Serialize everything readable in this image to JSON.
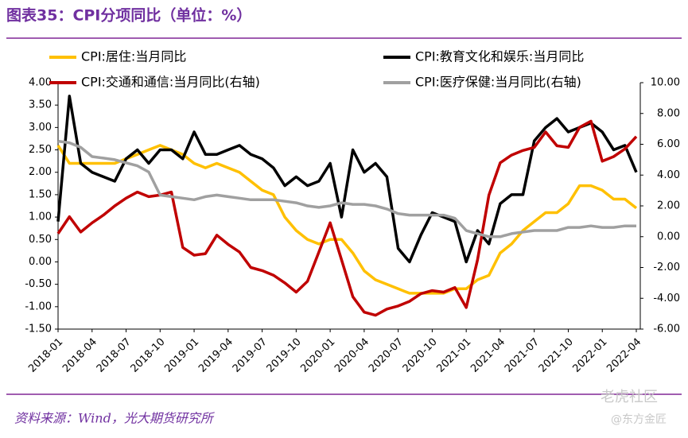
{
  "chart_data": {
    "type": "line",
    "title": "图表35：CPI分项同比（单位：%）",
    "source": "资料来源：Wind，光大期货研究所",
    "watermarks": [
      "老虎社区",
      "@东方金匠"
    ],
    "categories": [
      "2018-01",
      null,
      null,
      "2018-04",
      null,
      null,
      "2018-07",
      null,
      null,
      "2018-10",
      null,
      null,
      "2019-01",
      null,
      null,
      "2019-04",
      null,
      null,
      "2019-07",
      null,
      null,
      "2019-10",
      null,
      null,
      "2020-01",
      null,
      null,
      "2020-04",
      null,
      null,
      "2020-07",
      null,
      null,
      "2020-10",
      null,
      null,
      "2021-01",
      null,
      null,
      "2021-04",
      null,
      null,
      "2021-07",
      null,
      null,
      "2021-10",
      null,
      null,
      "2022-01",
      null,
      null,
      "2022-04"
    ],
    "series": [
      {
        "name": "CPI:居住:当月同比",
        "color": "#FFC000",
        "values": [
          2.6,
          2.2,
          2.2,
          2.2,
          2.2,
          2.2,
          2.3,
          2.4,
          2.5,
          2.6,
          2.5,
          2.4,
          2.2,
          2.1,
          2.2,
          2.1,
          2.0,
          1.8,
          1.6,
          1.5,
          1.0,
          0.7,
          0.5,
          0.4,
          0.5,
          0.5,
          0.2,
          -0.2,
          -0.4,
          -0.5,
          -0.6,
          -0.7,
          -0.7,
          -0.7,
          -0.7,
          -0.6,
          -0.6,
          -0.4,
          -0.3,
          0.2,
          0.4,
          0.7,
          0.9,
          1.1,
          1.1,
          1.3,
          1.7,
          1.7,
          1.6,
          1.4,
          1.4,
          1.2
        ]
      },
      {
        "name": "CPI:教育文化和娱乐:当月同比",
        "color": "#000000",
        "values": [
          0.9,
          3.7,
          2.2,
          2.0,
          1.9,
          1.8,
          2.3,
          2.5,
          2.2,
          2.5,
          2.5,
          2.3,
          2.9,
          2.4,
          2.4,
          2.5,
          2.6,
          2.4,
          2.3,
          2.1,
          1.7,
          1.9,
          1.7,
          1.8,
          2.2,
          1.0,
          2.5,
          2.0,
          2.2,
          1.9,
          0.3,
          0.0,
          0.6,
          1.1,
          1.0,
          0.9,
          0.0,
          0.7,
          0.4,
          1.3,
          1.5,
          1.5,
          2.7,
          3.0,
          3.2,
          2.9,
          3.0,
          3.1,
          2.9,
          2.5,
          2.6,
          2.0
        ]
      },
      {
        "name": "CPI:交通和通信:当月同比(右轴)",
        "color": "#C00000",
        "axis": "y2",
        "values": [
          0.2,
          1.3,
          0.3,
          0.9,
          1.4,
          2.0,
          2.5,
          2.9,
          2.6,
          2.7,
          2.9,
          -0.7,
          -1.2,
          -1.1,
          0.1,
          -0.5,
          -1.0,
          -2.0,
          -2.2,
          -2.5,
          -3.0,
          -3.6,
          -2.9,
          -1.0,
          0.9,
          -1.5,
          -3.9,
          -4.9,
          -5.1,
          -4.7,
          -4.5,
          -4.2,
          -3.7,
          -3.5,
          -3.6,
          -3.3,
          -4.6,
          -1.5,
          2.7,
          4.8,
          5.3,
          5.6,
          5.8,
          6.8,
          5.9,
          5.8,
          7.1,
          7.5,
          4.9,
          5.2,
          5.7,
          6.5
        ]
      },
      {
        "name": "CPI:医疗保健:当月同比(右轴)",
        "color": "#A0A0A0",
        "axis": "y2",
        "values": [
          6.2,
          6.1,
          5.8,
          5.2,
          5.1,
          5.0,
          4.8,
          4.6,
          4.2,
          2.7,
          2.6,
          2.5,
          2.4,
          2.6,
          2.7,
          2.6,
          2.5,
          2.4,
          2.4,
          2.4,
          2.3,
          2.2,
          2.0,
          1.9,
          2.0,
          2.2,
          2.1,
          2.1,
          2.0,
          1.8,
          1.5,
          1.4,
          1.4,
          1.4,
          1.4,
          1.2,
          0.4,
          0.2,
          0.0,
          0.0,
          0.2,
          0.3,
          0.4,
          0.4,
          0.4,
          0.6,
          0.6,
          0.7,
          0.6,
          0.6,
          0.7,
          0.7
        ]
      }
    ],
    "ylim": [
      -1.5,
      4.0
    ],
    "yticks": [
      {
        "value": -1.5,
        "label": "-1.50"
      },
      {
        "value": -1.0,
        "label": "-1.00"
      },
      {
        "value": -0.5,
        "label": "-0.50"
      },
      {
        "value": 0,
        "label": "0.00"
      },
      {
        "value": 0.5,
        "label": "0.50"
      },
      {
        "value": 1.0,
        "label": "1.00"
      },
      {
        "value": 1.5,
        "label": "1.50"
      },
      {
        "value": 2.0,
        "label": "2.00"
      },
      {
        "value": 2.5,
        "label": "2.50"
      },
      {
        "value": 3.0,
        "label": "3.00"
      },
      {
        "value": 3.5,
        "label": "3.50"
      },
      {
        "value": 4.0,
        "label": "4.00"
      }
    ],
    "y2lim": [
      -6.0,
      10.0
    ],
    "y2ticks": [
      {
        "value": -6,
        "label": "-6.00"
      },
      {
        "value": -4,
        "label": "-4.00"
      },
      {
        "value": -2,
        "label": "-2.00"
      },
      {
        "value": 0,
        "label": "0.00"
      },
      {
        "value": 2,
        "label": "2.00"
      },
      {
        "value": 4,
        "label": "4.00"
      },
      {
        "value": 6,
        "label": "6.00"
      },
      {
        "value": 8,
        "label": "8.00"
      },
      {
        "value": 10,
        "label": "10.00"
      }
    ],
    "grid": false
  }
}
